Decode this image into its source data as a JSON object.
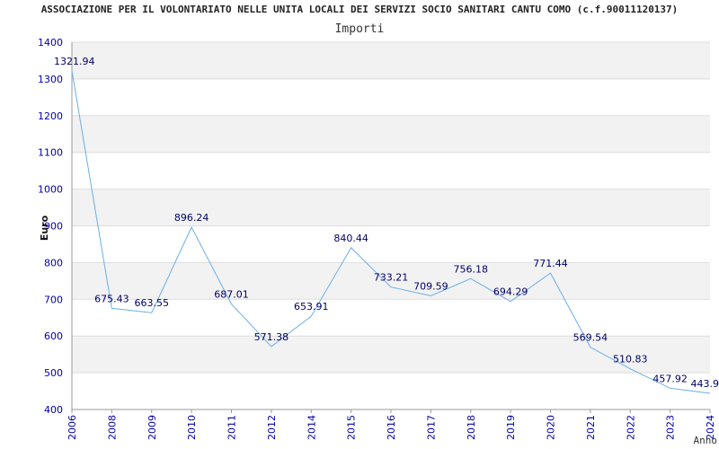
{
  "chart_data": {
    "type": "line",
    "title": "ASSOCIAZIONE PER IL VOLONTARIATO NELLE UNITA LOCALI DEI SERVIZI SOCIO SANITARI CANTU COMO (c.f.90011120137)",
    "subtitle": "Importi",
    "xlabel": "Anno",
    "ylabel": "Euro",
    "ylim": [
      400,
      1400
    ],
    "yticks": [
      400,
      500,
      600,
      700,
      800,
      900,
      1000,
      1100,
      1200,
      1300,
      1400
    ],
    "grid": true,
    "x": [
      "2006",
      "2008",
      "2009",
      "2010",
      "2011",
      "2012",
      "2014",
      "2015",
      "2016",
      "2017",
      "2018",
      "2019",
      "2020",
      "2021",
      "2022",
      "2023",
      "2024"
    ],
    "values": [
      1321.94,
      675.43,
      663.55,
      896.24,
      687.01,
      571.38,
      653.91,
      840.44,
      733.21,
      709.59,
      756.18,
      694.29,
      771.44,
      569.54,
      510.83,
      457.92,
      443.9
    ],
    "labels": [
      "1321.94",
      "675.43",
      "663.55",
      "896.24",
      "687.01",
      "571.38",
      "653.91",
      "840.44",
      "733.21",
      "709.59",
      "756.18",
      "694.29",
      "771.44",
      "569.54",
      "510.83",
      "457.92",
      "443.9"
    ],
    "line_color": "#6aaee8",
    "band_color": "#f2f2f2"
  }
}
